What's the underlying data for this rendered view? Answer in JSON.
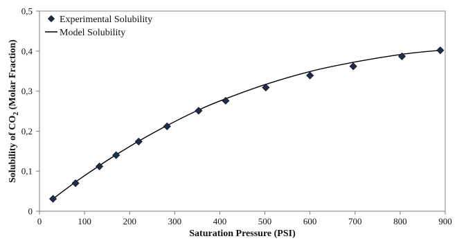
{
  "chart_data": {
    "type": "scatter",
    "xlabel": "Saturation Pressure (PSI)",
    "ylabel_main": "Solubility of CO",
    "ylabel_sub": "2",
    "ylabel_tail": " (Molar Fraction)",
    "xlim": [
      0,
      900
    ],
    "ylim": [
      0,
      0.5
    ],
    "x_ticks": [
      0,
      100,
      200,
      300,
      400,
      500,
      600,
      700,
      800,
      900
    ],
    "y_ticks": [
      {
        "value": 0,
        "label": "0"
      },
      {
        "value": 0.1,
        "label": "0,1"
      },
      {
        "value": 0.2,
        "label": "0,2"
      },
      {
        "value": 0.3,
        "label": "0,3"
      },
      {
        "value": 0.4,
        "label": "0,4"
      },
      {
        "value": 0.5,
        "label": "0,5"
      }
    ],
    "grid": false,
    "legend_position": "top-left",
    "series": [
      {
        "name": "Experimental Solubility",
        "kind": "markers",
        "marker": "diamond",
        "color": "#1f2f4a",
        "x": [
          30,
          80,
          133,
          170,
          220,
          283,
          353,
          413,
          502,
          600,
          696,
          804,
          889
        ],
        "y": [
          0.031,
          0.07,
          0.112,
          0.14,
          0.174,
          0.212,
          0.251,
          0.276,
          0.309,
          0.339,
          0.362,
          0.387,
          0.402
        ]
      },
      {
        "name": "Model Solubility",
        "kind": "line",
        "color": "#000000",
        "x": [
          30,
          80,
          133,
          170,
          220,
          283,
          353,
          413,
          502,
          600,
          696,
          804,
          889
        ],
        "y": [
          0.031,
          0.073,
          0.114,
          0.141,
          0.175,
          0.214,
          0.253,
          0.281,
          0.317,
          0.349,
          0.372,
          0.392,
          0.402
        ]
      }
    ]
  }
}
